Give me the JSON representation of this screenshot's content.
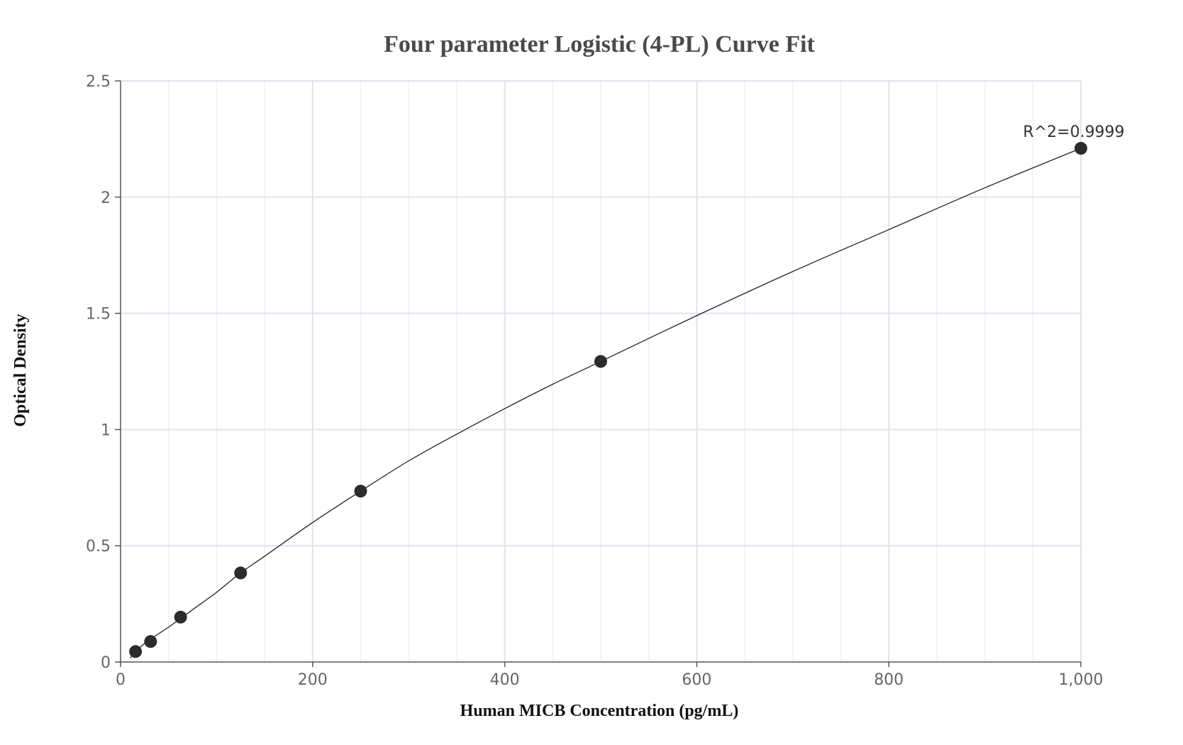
{
  "chart_data": {
    "type": "scatter",
    "title": "Four parameter Logistic (4-PL) Curve Fit",
    "xlabel": "Human MICB Concentration (pg/mL)",
    "ylabel": "Optical Density",
    "xlim": [
      0,
      1000
    ],
    "ylim": [
      0,
      2.5
    ],
    "x_ticks": [
      0,
      200,
      400,
      600,
      800,
      1000
    ],
    "x_tick_labels": [
      "0",
      "200",
      "400",
      "600",
      "800",
      "1,000"
    ],
    "y_ticks": [
      0,
      0.5,
      1,
      1.5,
      2,
      2.5
    ],
    "y_tick_labels": [
      "0",
      "0.5",
      "1",
      "1.5",
      "2",
      "2.5"
    ],
    "grid": true,
    "series": [
      {
        "x": [
          15.6,
          31.25,
          62.5,
          125,
          250,
          500,
          1000
        ],
        "y": [
          0.045,
          0.088,
          0.193,
          0.383,
          0.735,
          1.293,
          2.21
        ]
      }
    ],
    "fit_curve": {
      "x": [
        10,
        25,
        50,
        75,
        100,
        125,
        150,
        200,
        250,
        300,
        350,
        400,
        450,
        500,
        600,
        700,
        800,
        900,
        1000
      ],
      "y": [
        0.018,
        0.08,
        0.15,
        0.225,
        0.3,
        0.383,
        0.455,
        0.6,
        0.735,
        0.865,
        0.98,
        1.09,
        1.195,
        1.293,
        1.49,
        1.68,
        1.86,
        2.04,
        2.21
      ]
    },
    "annotation": "R^2=0.9999",
    "colors": {
      "marker": "#2b2b2b",
      "line": "#222222",
      "major_grid": "#dfe3ef",
      "minor_grid": "#eff1f7",
      "axis": "#555555"
    }
  }
}
